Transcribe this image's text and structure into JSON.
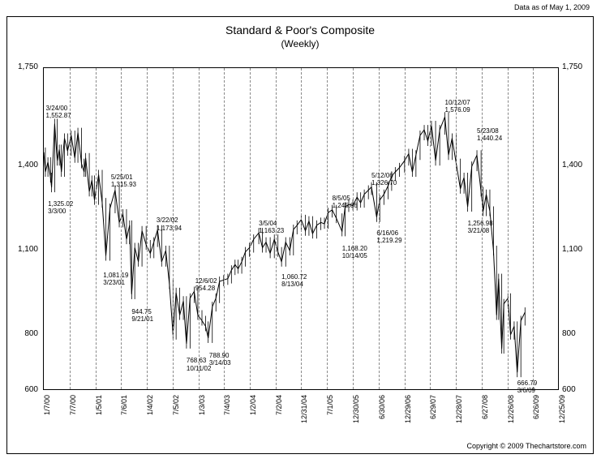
{
  "header": {
    "as_of": "Data as of May 1, 2009"
  },
  "footer": {
    "copyright": "Copyright © 2009 Thechartstore.com"
  },
  "chart": {
    "type": "line",
    "title": "Standard & Poor's Composite",
    "subtitle": "(Weekly)",
    "background_color": "#ffffff",
    "line_color": "#000000",
    "grid_color": "#888888",
    "title_fontsize": 14,
    "label_fontsize": 10,
    "tick_fontsize": 9,
    "annotation_fontsize": 8,
    "ylim": [
      600,
      1750
    ],
    "yticks": [
      600,
      800,
      1100,
      1400,
      1750
    ],
    "xlim": [
      2000.02,
      2010.0
    ],
    "xticks": [
      {
        "t": 2000.02,
        "label": "1/7/00"
      },
      {
        "t": 2000.52,
        "label": "7/7/00"
      },
      {
        "t": 2001.02,
        "label": "1/5/01"
      },
      {
        "t": 2001.51,
        "label": "7/6/01"
      },
      {
        "t": 2002.01,
        "label": "1/4/02"
      },
      {
        "t": 2002.51,
        "label": "7/5/02"
      },
      {
        "t": 2003.01,
        "label": "1/3/03"
      },
      {
        "t": 2003.51,
        "label": "7/4/03"
      },
      {
        "t": 2004.01,
        "label": "1/2/04"
      },
      {
        "t": 2004.51,
        "label": "7/2/04"
      },
      {
        "t": 2005.0,
        "label": "12/31/04"
      },
      {
        "t": 2005.5,
        "label": "7/1/05"
      },
      {
        "t": 2006.0,
        "label": "12/30/05"
      },
      {
        "t": 2006.5,
        "label": "6/30/06"
      },
      {
        "t": 2007.0,
        "label": "12/29/06"
      },
      {
        "t": 2007.49,
        "label": "6/29/07"
      },
      {
        "t": 2007.99,
        "label": "12/28/07"
      },
      {
        "t": 2008.49,
        "label": "6/27/08"
      },
      {
        "t": 2008.99,
        "label": "12/26/08"
      },
      {
        "t": 2009.48,
        "label": "6/26/09"
      },
      {
        "t": 2009.98,
        "label": "12/25/09"
      }
    ],
    "annotations": [
      {
        "t": 2000.06,
        "yv": 1620,
        "lines": [
          "3/24/00",
          "1,552.87"
        ]
      },
      {
        "t": 2000.1,
        "yv": 1280,
        "lines": [
          "1,325.02",
          "3/3/00"
        ]
      },
      {
        "t": 2001.32,
        "yv": 1375,
        "lines": [
          "5/25/01",
          "1,315.93"
        ]
      },
      {
        "t": 2001.17,
        "yv": 1025,
        "lines": [
          "1,081.19",
          "3/23/01"
        ]
      },
      {
        "t": 2001.72,
        "yv": 895,
        "lines": [
          "944.75",
          "9/21/01"
        ]
      },
      {
        "t": 2002.2,
        "yv": 1220,
        "lines": [
          "3/22/02",
          "1,173.94"
        ]
      },
      {
        "t": 2002.78,
        "yv": 720,
        "lines": [
          "768.63",
          "10/11/02"
        ]
      },
      {
        "t": 2002.95,
        "yv": 1005,
        "lines": [
          "12/6/02",
          "954.28"
        ]
      },
      {
        "t": 2003.22,
        "yv": 740,
        "lines": [
          "788.90",
          "3/14/03"
        ]
      },
      {
        "t": 2004.18,
        "yv": 1210,
        "lines": [
          "3/5/04",
          "1,163.23"
        ]
      },
      {
        "t": 2004.62,
        "yv": 1020,
        "lines": [
          "1,060.72",
          "8/13/04"
        ]
      },
      {
        "t": 2005.6,
        "yv": 1300,
        "lines": [
          "8/5/05",
          "1,245.86"
        ]
      },
      {
        "t": 2005.79,
        "yv": 1120,
        "lines": [
          "1,168.20",
          "10/14/05"
        ]
      },
      {
        "t": 2006.36,
        "yv": 1380,
        "lines": [
          "5/12/06",
          "1,326.70"
        ]
      },
      {
        "t": 2006.46,
        "yv": 1175,
        "lines": [
          "6/16/06",
          "1,219.29"
        ]
      },
      {
        "t": 2007.78,
        "yv": 1640,
        "lines": [
          "10/12/07",
          "1,576.09"
        ]
      },
      {
        "t": 2008.22,
        "yv": 1210,
        "lines": [
          "1,256.98",
          "3/21/08"
        ]
      },
      {
        "t": 2008.4,
        "yv": 1540,
        "lines": [
          "5/23/08",
          "1,440.24"
        ]
      },
      {
        "t": 2009.18,
        "yv": 640,
        "lines": [
          "666.79",
          "3/6/09"
        ]
      }
    ],
    "series": [
      {
        "t": 2000.02,
        "v": 1450
      },
      {
        "t": 2000.05,
        "v": 1380
      },
      {
        "t": 2000.1,
        "v": 1415
      },
      {
        "t": 2000.15,
        "v": 1360
      },
      {
        "t": 2000.17,
        "v": 1325
      },
      {
        "t": 2000.23,
        "v": 1552
      },
      {
        "t": 2000.28,
        "v": 1420
      },
      {
        "t": 2000.32,
        "v": 1460
      },
      {
        "t": 2000.36,
        "v": 1380
      },
      {
        "t": 2000.42,
        "v": 1500
      },
      {
        "t": 2000.48,
        "v": 1455
      },
      {
        "t": 2000.55,
        "v": 1510
      },
      {
        "t": 2000.62,
        "v": 1430
      },
      {
        "t": 2000.68,
        "v": 1520
      },
      {
        "t": 2000.75,
        "v": 1410
      },
      {
        "t": 2000.8,
        "v": 1380
      },
      {
        "t": 2000.83,
        "v": 1430
      },
      {
        "t": 2000.9,
        "v": 1310
      },
      {
        "t": 2000.95,
        "v": 1350
      },
      {
        "t": 2001.0,
        "v": 1280
      },
      {
        "t": 2001.08,
        "v": 1370
      },
      {
        "t": 2001.15,
        "v": 1270
      },
      {
        "t": 2001.22,
        "v": 1081
      },
      {
        "t": 2001.3,
        "v": 1250
      },
      {
        "t": 2001.4,
        "v": 1315
      },
      {
        "t": 2001.48,
        "v": 1200
      },
      {
        "t": 2001.55,
        "v": 1230
      },
      {
        "t": 2001.62,
        "v": 1140
      },
      {
        "t": 2001.68,
        "v": 1190
      },
      {
        "t": 2001.72,
        "v": 944
      },
      {
        "t": 2001.78,
        "v": 1110
      },
      {
        "t": 2001.85,
        "v": 1060
      },
      {
        "t": 2001.92,
        "v": 1170
      },
      {
        "t": 2002.0,
        "v": 1120
      },
      {
        "t": 2002.08,
        "v": 1090
      },
      {
        "t": 2002.15,
        "v": 1130
      },
      {
        "t": 2002.22,
        "v": 1173
      },
      {
        "t": 2002.3,
        "v": 1060
      },
      {
        "t": 2002.38,
        "v": 1100
      },
      {
        "t": 2002.45,
        "v": 980
      },
      {
        "t": 2002.52,
        "v": 800
      },
      {
        "t": 2002.58,
        "v": 950
      },
      {
        "t": 2002.65,
        "v": 870
      },
      {
        "t": 2002.72,
        "v": 920
      },
      {
        "t": 2002.78,
        "v": 768
      },
      {
        "t": 2002.85,
        "v": 930
      },
      {
        "t": 2002.93,
        "v": 954
      },
      {
        "t": 2003.0,
        "v": 870
      },
      {
        "t": 2003.08,
        "v": 850
      },
      {
        "t": 2003.15,
        "v": 830
      },
      {
        "t": 2003.2,
        "v": 788
      },
      {
        "t": 2003.28,
        "v": 900
      },
      {
        "t": 2003.35,
        "v": 930
      },
      {
        "t": 2003.42,
        "v": 990
      },
      {
        "t": 2003.5,
        "v": 995
      },
      {
        "t": 2003.58,
        "v": 1000
      },
      {
        "t": 2003.65,
        "v": 1030
      },
      {
        "t": 2003.72,
        "v": 1050
      },
      {
        "t": 2003.78,
        "v": 1035
      },
      {
        "t": 2003.85,
        "v": 1060
      },
      {
        "t": 2003.92,
        "v": 1095
      },
      {
        "t": 2004.0,
        "v": 1110
      },
      {
        "t": 2004.08,
        "v": 1140
      },
      {
        "t": 2004.18,
        "v": 1163
      },
      {
        "t": 2004.25,
        "v": 1110
      },
      {
        "t": 2004.32,
        "v": 1130
      },
      {
        "t": 2004.4,
        "v": 1090
      },
      {
        "t": 2004.48,
        "v": 1140
      },
      {
        "t": 2004.55,
        "v": 1095
      },
      {
        "t": 2004.62,
        "v": 1060
      },
      {
        "t": 2004.7,
        "v": 1130
      },
      {
        "t": 2004.78,
        "v": 1100
      },
      {
        "t": 2004.85,
        "v": 1175
      },
      {
        "t": 2004.92,
        "v": 1190
      },
      {
        "t": 2005.0,
        "v": 1210
      },
      {
        "t": 2005.08,
        "v": 1170
      },
      {
        "t": 2005.15,
        "v": 1205
      },
      {
        "t": 2005.22,
        "v": 1160
      },
      {
        "t": 2005.3,
        "v": 1190
      },
      {
        "t": 2005.38,
        "v": 1200
      },
      {
        "t": 2005.45,
        "v": 1195
      },
      {
        "t": 2005.52,
        "v": 1235
      },
      {
        "t": 2005.6,
        "v": 1245
      },
      {
        "t": 2005.68,
        "v": 1215
      },
      {
        "t": 2005.79,
        "v": 1168
      },
      {
        "t": 2005.85,
        "v": 1255
      },
      {
        "t": 2005.92,
        "v": 1265
      },
      {
        "t": 2006.0,
        "v": 1260
      },
      {
        "t": 2006.08,
        "v": 1290
      },
      {
        "t": 2006.15,
        "v": 1270
      },
      {
        "t": 2006.22,
        "v": 1300
      },
      {
        "t": 2006.3,
        "v": 1315
      },
      {
        "t": 2006.36,
        "v": 1326
      },
      {
        "t": 2006.46,
        "v": 1219
      },
      {
        "t": 2006.52,
        "v": 1280
      },
      {
        "t": 2006.6,
        "v": 1300
      },
      {
        "t": 2006.68,
        "v": 1330
      },
      {
        "t": 2006.75,
        "v": 1365
      },
      {
        "t": 2006.82,
        "v": 1380
      },
      {
        "t": 2006.9,
        "v": 1395
      },
      {
        "t": 2007.0,
        "v": 1420
      },
      {
        "t": 2007.08,
        "v": 1445
      },
      {
        "t": 2007.15,
        "v": 1380
      },
      {
        "t": 2007.22,
        "v": 1440
      },
      {
        "t": 2007.3,
        "v": 1510
      },
      {
        "t": 2007.38,
        "v": 1530
      },
      {
        "t": 2007.45,
        "v": 1490
      },
      {
        "t": 2007.52,
        "v": 1545
      },
      {
        "t": 2007.6,
        "v": 1420
      },
      {
        "t": 2007.68,
        "v": 1530
      },
      {
        "t": 2007.78,
        "v": 1576
      },
      {
        "t": 2007.85,
        "v": 1440
      },
      {
        "t": 2007.92,
        "v": 1500
      },
      {
        "t": 2008.0,
        "v": 1410
      },
      {
        "t": 2008.08,
        "v": 1320
      },
      {
        "t": 2008.15,
        "v": 1360
      },
      {
        "t": 2008.22,
        "v": 1256
      },
      {
        "t": 2008.3,
        "v": 1400
      },
      {
        "t": 2008.4,
        "v": 1440
      },
      {
        "t": 2008.48,
        "v": 1310
      },
      {
        "t": 2008.52,
        "v": 1240
      },
      {
        "t": 2008.58,
        "v": 1300
      },
      {
        "t": 2008.65,
        "v": 1240
      },
      {
        "t": 2008.72,
        "v": 1100
      },
      {
        "t": 2008.78,
        "v": 870
      },
      {
        "t": 2008.82,
        "v": 1000
      },
      {
        "t": 2008.88,
        "v": 750
      },
      {
        "t": 2008.92,
        "v": 910
      },
      {
        "t": 2009.0,
        "v": 930
      },
      {
        "t": 2009.05,
        "v": 800
      },
      {
        "t": 2009.12,
        "v": 830
      },
      {
        "t": 2009.18,
        "v": 666
      },
      {
        "t": 2009.25,
        "v": 850
      },
      {
        "t": 2009.33,
        "v": 880
      }
    ]
  }
}
